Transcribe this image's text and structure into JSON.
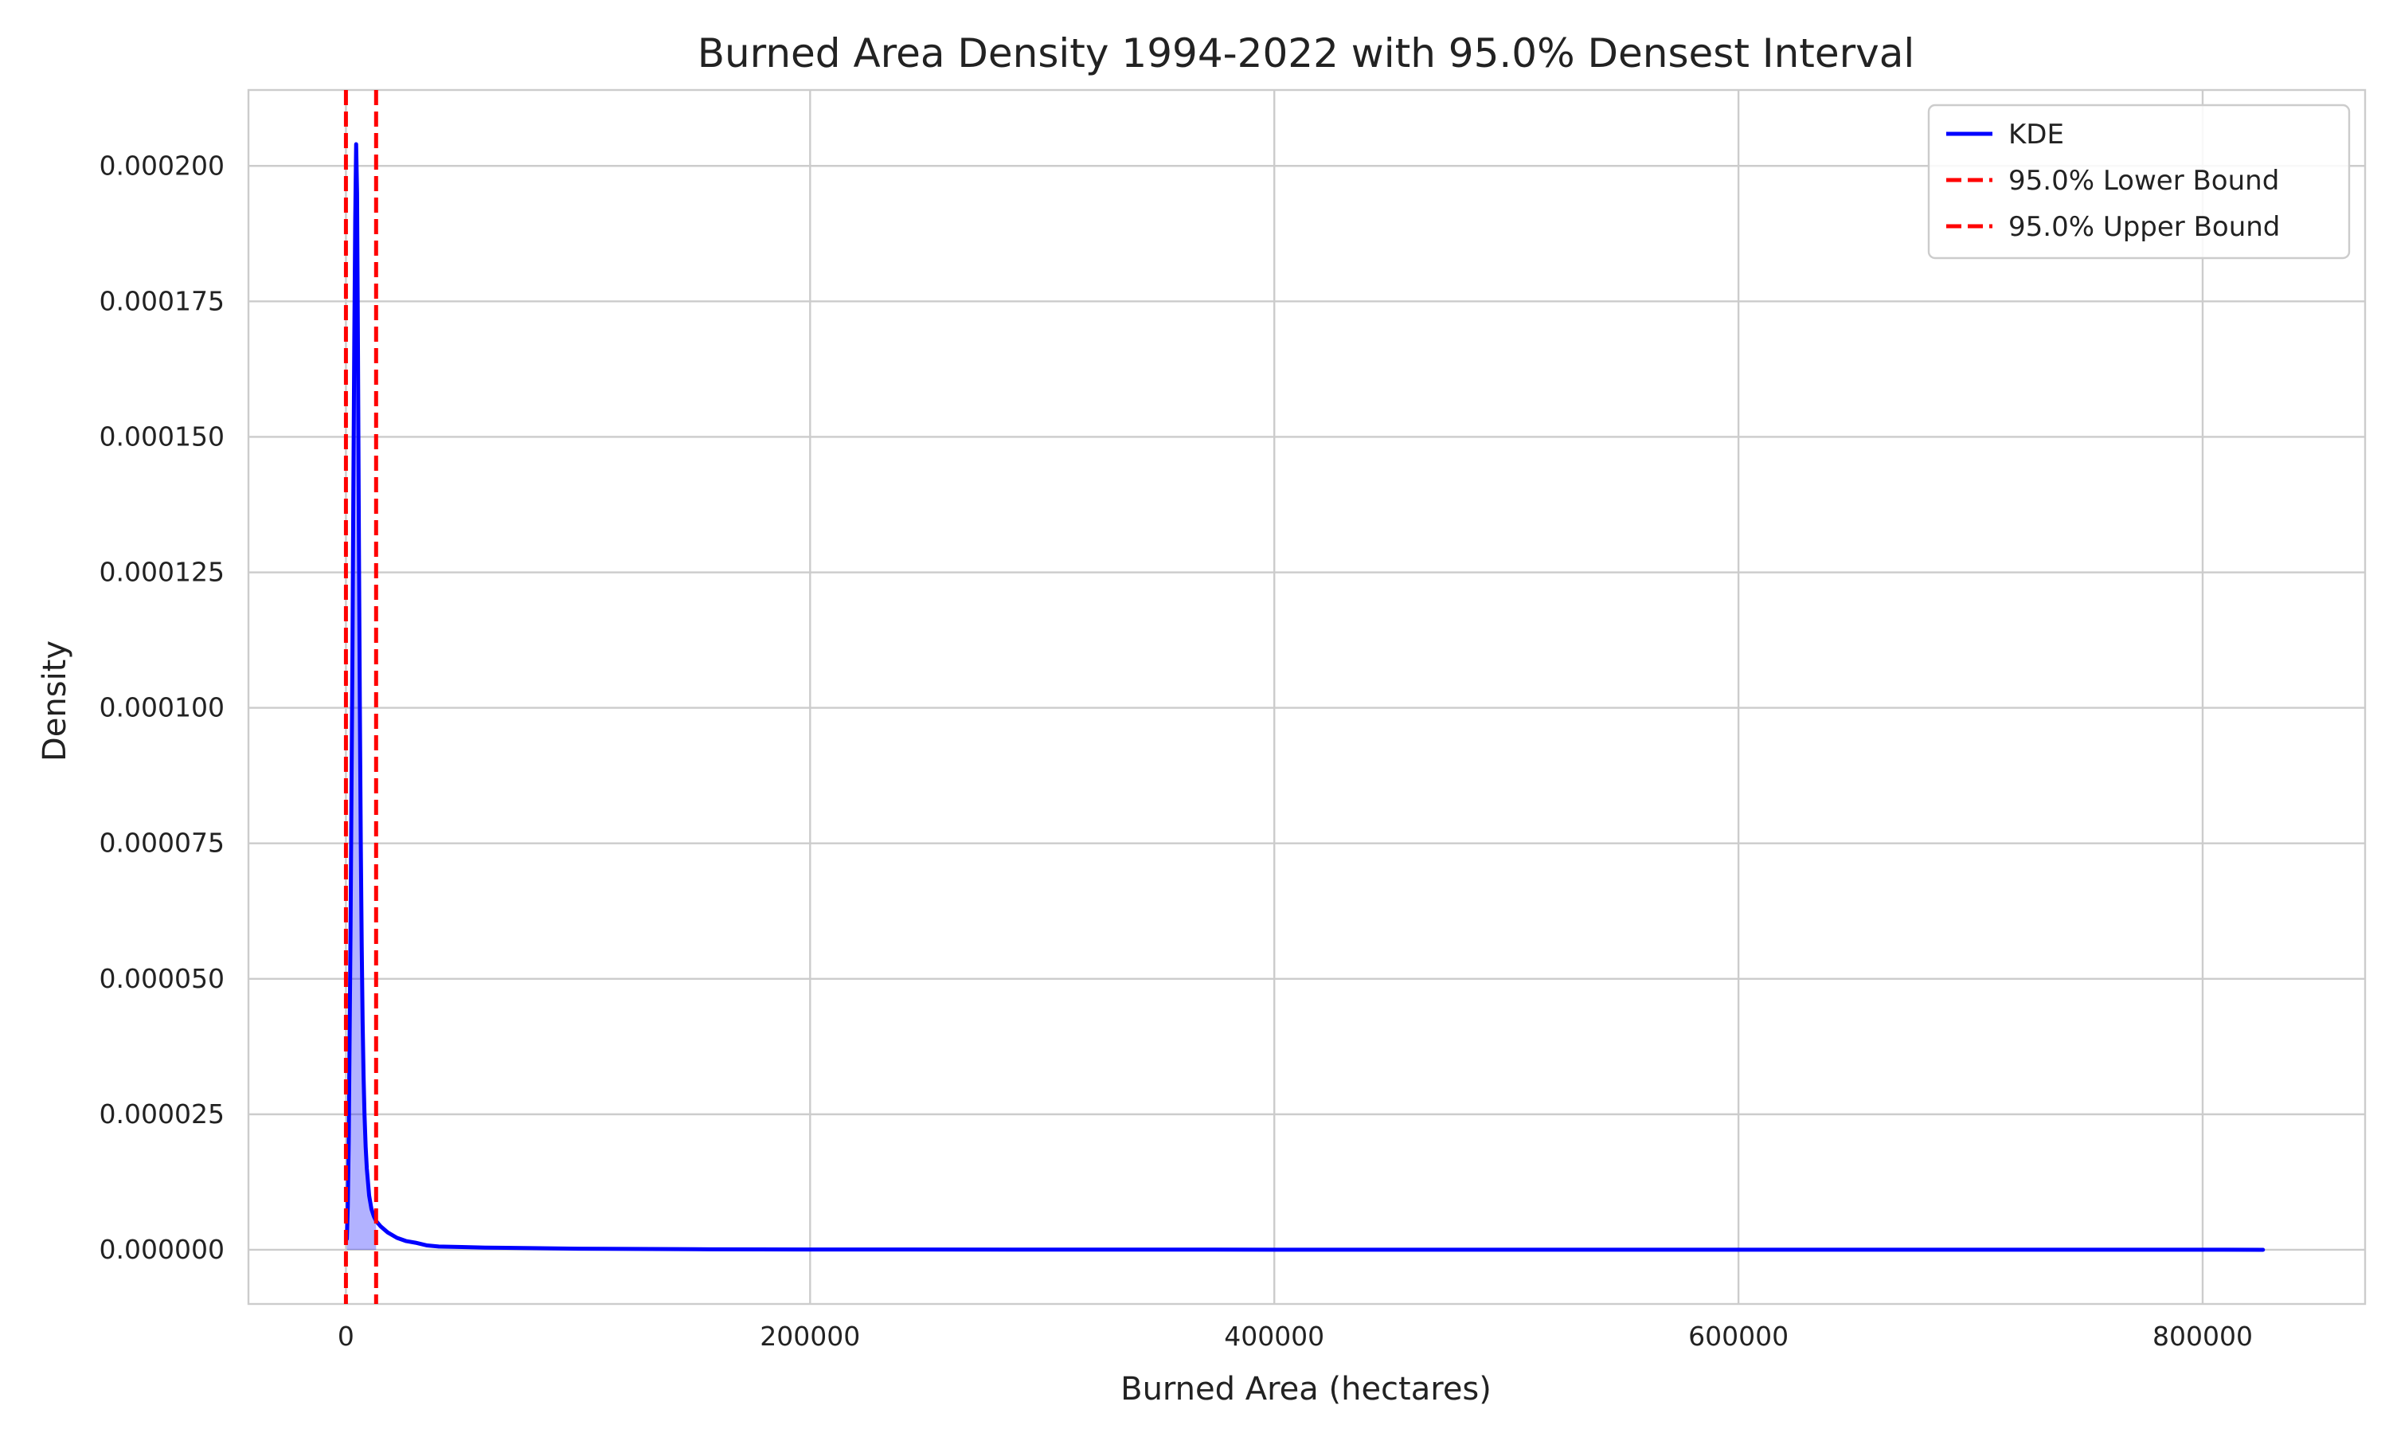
{
  "chart_data": {
    "type": "line",
    "title": "Burned Area Density 1994-2022 with 95.0% Densest Interval",
    "xlabel": "Burned Area (hectares)",
    "ylabel": "Density",
    "xlim": [
      -42000,
      870000
    ],
    "ylim": [
      -1e-05,
      0.000214
    ],
    "x_ticks": [
      0,
      200000,
      400000,
      600000,
      800000
    ],
    "x_tick_labels": [
      "0",
      "200000",
      "400000",
      "600000",
      "800000"
    ],
    "y_ticks": [
      0,
      2.5e-05,
      5e-05,
      7.5e-05,
      0.0001,
      0.000125,
      0.00015,
      0.000175,
      0.0002
    ],
    "y_tick_labels": [
      "0.000000",
      "0.000025",
      "0.000050",
      "0.000075",
      "0.000100",
      "0.000125",
      "0.000150",
      "0.000175",
      "0.000200"
    ],
    "grid": true,
    "legend_position": "top-right",
    "series": [
      {
        "name": "KDE",
        "color": "#0000ff",
        "fill": true,
        "x": [
          400,
          800,
          1200,
          1600,
          2000,
          2400,
          2800,
          3200,
          3600,
          4000,
          4400,
          4800,
          5200,
          5600,
          6000,
          6400,
          6800,
          7200,
          7600,
          8000,
          8500,
          9000,
          10000,
          11000,
          12000,
          13000,
          15000,
          18000,
          22000,
          26000,
          30000,
          35000,
          40000,
          50000,
          60000,
          80000,
          100000,
          150000,
          200000,
          300000,
          400000,
          500000,
          600000,
          700000,
          800000,
          826000
        ],
        "y": [
          2e-06,
          8e-06,
          2e-05,
          4e-05,
          6e-05,
          8.5e-05,
          0.00011,
          0.00014,
          0.000168,
          0.00019,
          0.000204,
          0.000195,
          0.000165,
          0.00013,
          0.0001,
          7.5e-05,
          5.6e-05,
          4.2e-05,
          3.2e-05,
          2.5e-05,
          1.9e-05,
          1.5e-05,
          1e-05,
          7.5e-06,
          6.2e-06,
          5.3e-06,
          4.3e-06,
          3.2e-06,
          2.2e-06,
          1.6e-06,
          1.3e-06,
          8e-07,
          6e-07,
          5e-07,
          4e-07,
          3e-07,
          2e-07,
          1e-07,
          5e-08,
          3e-08,
          2e-08,
          2e-08,
          1e-08,
          1e-08,
          1e-08,
          0.0
        ]
      },
      {
        "name": "95.0% Lower Bound",
        "color": "#ff0000",
        "line_style": "dashed",
        "vline_x": 0
      },
      {
        "name": "95.0% Upper Bound",
        "color": "#ff0000",
        "line_style": "dashed",
        "vline_x": 13000
      }
    ]
  }
}
